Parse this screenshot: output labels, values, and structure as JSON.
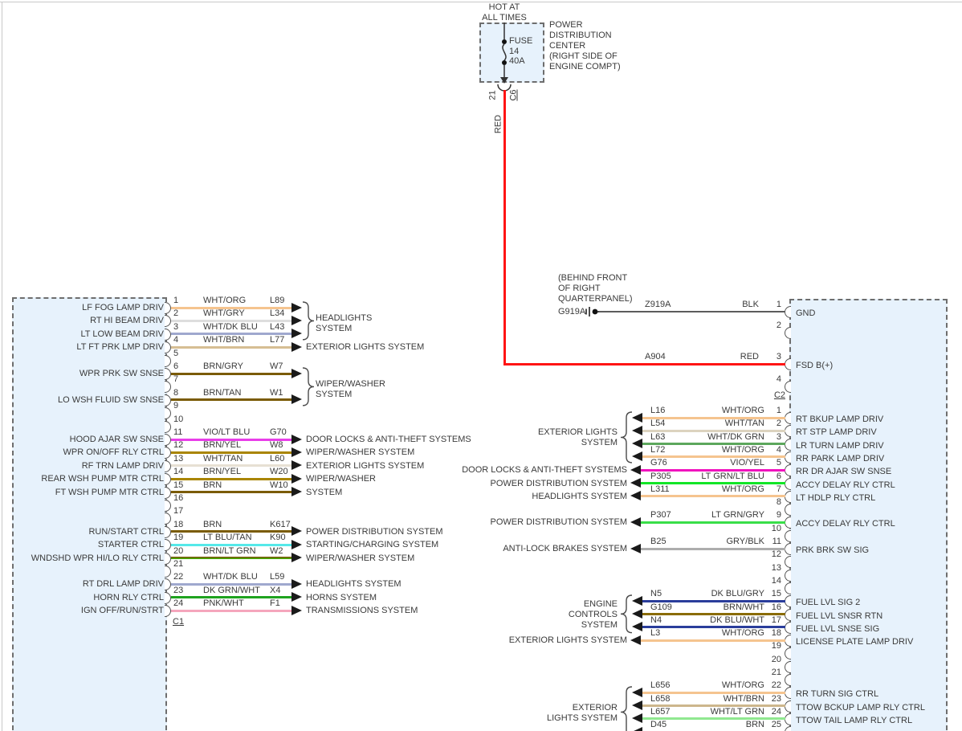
{
  "power_center": {
    "hot_lines": [
      "HOT AT",
      "ALL TIMES"
    ],
    "fuse_label": "FUSE",
    "fuse_number": "14",
    "fuse_rating": "40A",
    "title_lines": [
      "POWER",
      "DISTRIBUTION",
      "CENTER",
      "(RIGHT SIDE OF",
      "ENGINE COMPT)"
    ],
    "out_pin": "21",
    "out_connector": "C6"
  },
  "feed": {
    "vertical_label": "RED",
    "color": "#FF1414"
  },
  "ground": {
    "location_lines": [
      "(BEHIND FRONT",
      "OF RIGHT",
      "QUARTERPANEL)"
    ],
    "name": "G919A"
  },
  "right_block": {
    "c2": {
      "label": "C2",
      "rows": [
        {
          "pin": "1",
          "circuit": "Z919A",
          "color_name": "BLK",
          "color": "#5C5C5C",
          "signal": "GND"
        },
        {
          "pin": "2"
        },
        {
          "pin": "3",
          "circuit": "A904",
          "color_name": "RED",
          "color": "#FF1414",
          "signal": "FSD B(+)"
        },
        {
          "pin": "4"
        }
      ]
    },
    "main": {
      "rows": [
        {
          "pin": "1",
          "circuit": "L16",
          "color_name": "WHT/ORG",
          "color": "#F5C48F",
          "signal": "RT BKUP LAMP DRIV"
        },
        {
          "pin": "2",
          "circuit": "L54",
          "color_name": "WHT/TAN",
          "color": "#DCD3BF",
          "signal": "RT STP LAMP DRIV"
        },
        {
          "pin": "3",
          "circuit": "L63",
          "color_name": "WHT/DK GRN",
          "color": "#5CA75C",
          "signal": "LR TURN LAMP DRIV"
        },
        {
          "pin": "4",
          "circuit": "L72",
          "color_name": "WHT/ORG",
          "color": "#F5C48F",
          "signal": "RR PARK LAMP DRIV"
        },
        {
          "pin": "5",
          "circuit": "G76",
          "color_name": "VIO/YEL",
          "color": "#F013BE",
          "signal": "RR DR AJAR SW SNSE",
          "system": "DOOR LOCKS & ANTI-THEFT SYSTEMS"
        },
        {
          "pin": "6",
          "circuit": "P305",
          "color_name": "LT GRN/LT BLU",
          "color": "#12E626",
          "signal": "ACCY DELAY RLY CTRL",
          "system": "POWER DISTRIBUTION SYSTEM"
        },
        {
          "pin": "7",
          "circuit": "L311",
          "color_name": "WHT/ORG",
          "color": "#F5C48F",
          "signal": "LT HDLP RLY CTRL",
          "system": "HEADLIGHTS SYSTEM"
        },
        {
          "pin": "8"
        },
        {
          "pin": "9",
          "circuit": "P307",
          "color_name": "LT GRN/GRY",
          "color": "#39DE49",
          "signal": "ACCY DELAY RLY CTRL",
          "system": "POWER DISTRIBUTION SYSTEM"
        },
        {
          "pin": "10"
        },
        {
          "pin": "11",
          "circuit": "B25",
          "color_name": "GRY/BLK",
          "color": "#ADADAD",
          "signal": "PRK BRK SW SIG",
          "system": "ANTI-LOCK BRAKES SYSTEM"
        },
        {
          "pin": "12"
        },
        {
          "pin": "13"
        },
        {
          "pin": "14"
        },
        {
          "pin": "15",
          "circuit": "N5",
          "color_name": "DK BLU/GRY",
          "color": "#2A3D9B",
          "signal": "FUEL LVL SIG 2"
        },
        {
          "pin": "16",
          "circuit": "G109",
          "color_name": "BRN/WHT",
          "color": "#8A6C05",
          "signal": "FUEL LVL SNSR RTN"
        },
        {
          "pin": "17",
          "circuit": "N4",
          "color_name": "DK BLU/WHT",
          "color": "#2A3D9B",
          "signal": "FUEL LVL SNSE SIG"
        },
        {
          "pin": "18",
          "circuit": "L3",
          "color_name": "WHT/ORG",
          "color": "#F5C48F",
          "signal": "LICENSE PLATE LAMP DRIV",
          "system": "EXTERIOR LIGHTS SYSTEM"
        },
        {
          "pin": "19"
        },
        {
          "pin": "20"
        },
        {
          "pin": "21"
        },
        {
          "pin": "22",
          "circuit": "L656",
          "color_name": "WHT/ORG",
          "color": "#F5C48F",
          "signal": "RR TURN SIG CTRL"
        },
        {
          "pin": "23",
          "circuit": "L658",
          "color_name": "WHT/BRN",
          "color": "#CDB68C",
          "signal": "TTOW BCKUP LAMP RLY CTRL"
        },
        {
          "pin": "24",
          "circuit": "L657",
          "color_name": "WHT/LT GRN",
          "color": "#90E890",
          "signal": "TTOW TAIL LAMP RLY CTRL"
        },
        {
          "pin": "25",
          "circuit": "D45",
          "color_name": "BRN",
          "color": "#7A5B04"
        }
      ],
      "groups": [
        {
          "from": 1,
          "to": 4,
          "label_lines": [
            "EXTERIOR LIGHTS",
            "SYSTEM"
          ]
        },
        {
          "from": 15,
          "to": 17,
          "label_lines": [
            "ENGINE",
            "CONTROLS",
            "SYSTEM"
          ]
        },
        {
          "from": 22,
          "to": 25,
          "label_lines": [
            "EXTERIOR",
            "LIGHTS SYSTEM"
          ]
        }
      ]
    }
  },
  "left_block": {
    "label": "C1",
    "rows": [
      {
        "pin": "1",
        "signal": "LF FOG LAMP DRIV",
        "color_name": "WHT/ORG",
        "circuit": "L89",
        "color": "#F5C48F"
      },
      {
        "pin": "2",
        "signal": "RT HI BEAM DRIV",
        "color_name": "WHT/GRY",
        "circuit": "L34",
        "color": "#DEDEDE"
      },
      {
        "pin": "3",
        "signal": "LT LOW BEAM DRIV",
        "color_name": "WHT/DK BLU",
        "circuit": "L43",
        "color": "#9FA8CE"
      },
      {
        "pin": "4",
        "signal": "LT FT PRK LMP DRIV",
        "color_name": "WHT/BRN",
        "circuit": "L77",
        "color": "#D6BE93",
        "system": "EXTERIOR LIGHTS SYSTEM"
      },
      {
        "pin": "5"
      },
      {
        "pin": "6",
        "signal": "WPR PRK SW SNSE",
        "color_name": "BRN/GRY",
        "circuit": "W7",
        "color": "#7A5B04"
      },
      {
        "pin": "7"
      },
      {
        "pin": "8",
        "signal": "LO WSH FLUID SW SNSE",
        "color_name": "BRN/TAN",
        "circuit": "W1",
        "color": "#7A5B04"
      },
      {
        "pin": "9"
      },
      {
        "pin": "10"
      },
      {
        "pin": "11",
        "signal": "HOOD AJAR SW SNSE",
        "color_name": "VIO/LT BLU",
        "circuit": "G70",
        "color": "#E83DE8",
        "system": "DOOR LOCKS & ANTI-THEFT SYSTEMS"
      },
      {
        "pin": "12",
        "signal": "WPR ON/OFF RLY CTRL",
        "color_name": "BRN/YEL",
        "circuit": "W8",
        "color": "#A98500",
        "system": "WIPER/WASHER SYSTEM"
      },
      {
        "pin": "13",
        "signal": "RF TRN LAMP DRIV",
        "color_name": "WHT/TAN",
        "circuit": "L60",
        "color": "#E7E0D3",
        "system": "EXTERIOR LIGHTS SYSTEM"
      },
      {
        "pin": "14",
        "signal": "REAR WSH PUMP MTR CTRL",
        "color_name": "BRN/YEL",
        "circuit": "W20",
        "color": "#A98500",
        "system": "WIPER/WASHER"
      },
      {
        "pin": "15",
        "signal": "FT WSH PUMP MTR CTRL",
        "color_name": "BRN",
        "circuit": "W10",
        "color": "#7A5B04",
        "system": "SYSTEM"
      },
      {
        "pin": "16"
      },
      {
        "pin": "17"
      },
      {
        "pin": "18",
        "signal": "RUN/START CTRL",
        "color_name": "BRN",
        "circuit": "K617",
        "color": "#7A5B04",
        "system": "POWER DISTRIBUTION SYSTEM"
      },
      {
        "pin": "19",
        "signal": "STARTER CTRL",
        "color_name": "LT BLU/TAN",
        "circuit": "K90",
        "color": "#55E9E9",
        "system": "STARTING/CHARGING SYSTEM"
      },
      {
        "pin": "20",
        "signal": "WNDSHD WPR HI/LO RLY CTRL",
        "color_name": "BRN/LT GRN",
        "circuit": "W2",
        "color": "#7A5B04",
        "color2": "#44AA00",
        "system": "WIPER/WASHER SYSTEM"
      },
      {
        "pin": "21"
      },
      {
        "pin": "22",
        "signal": "RT DRL LAMP DRIV",
        "color_name": "WHT/DK BLU",
        "circuit": "L59",
        "color": "#9FA8CE",
        "system": "HEADLIGHTS SYSTEM"
      },
      {
        "pin": "23",
        "signal": "HORN RLY CTRL",
        "color_name": "DK GRN/WHT",
        "circuit": "X4",
        "color": "#1FA31F",
        "system": "HORNS SYSTEM"
      },
      {
        "pin": "24",
        "signal": "IGN OFF/RUN/STRT",
        "color_name": "PNK/WHT",
        "circuit": "F1",
        "color": "#F5A6BC",
        "system": "TRANSMISSIONS SYSTEM"
      }
    ],
    "groups": [
      {
        "from": 1,
        "to": 3,
        "label_lines": [
          "HEADLIGHTS",
          "SYSTEM"
        ]
      },
      {
        "from": 6,
        "to": 8,
        "label_lines": [
          "WIPER/WASHER",
          "SYSTEM"
        ]
      }
    ]
  }
}
